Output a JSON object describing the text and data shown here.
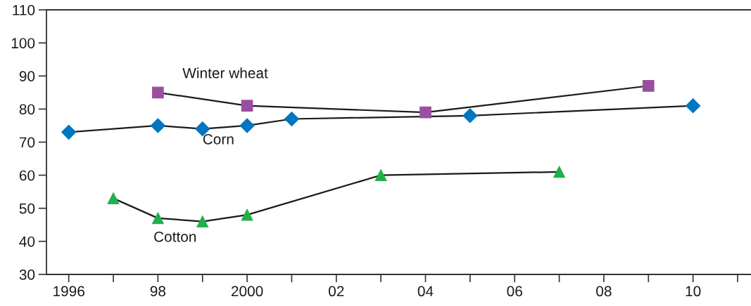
{
  "chart_data": {
    "type": "line",
    "series": [
      {
        "name": "Winter wheat",
        "color": "#994f9e",
        "marker": "square",
        "x": [
          1998,
          2000,
          2004,
          2009
        ],
        "values": [
          85,
          81,
          79,
          87
        ]
      },
      {
        "name": "Corn",
        "color": "#0076c0",
        "marker": "diamond",
        "x": [
          1996,
          1998,
          1999,
          2000,
          2001,
          2005,
          2010
        ],
        "values": [
          73,
          75,
          74,
          75,
          77,
          78,
          81
        ]
      },
      {
        "name": "Cotton",
        "color": "#21b04b",
        "marker": "triangle",
        "x": [
          1997,
          1998,
          1999,
          2000,
          2003,
          2007
        ],
        "values": [
          53,
          47,
          46,
          48,
          60,
          61
        ]
      }
    ],
    "xlim": [
      1995.5,
      2011.3
    ],
    "xticks": [
      {
        "value": 1996,
        "label": "1996"
      },
      {
        "value": 1997,
        "label": null
      },
      {
        "value": 1998,
        "label": "98"
      },
      {
        "value": 1999,
        "label": null
      },
      {
        "value": 2000,
        "label": "2000"
      },
      {
        "value": 2001,
        "label": null
      },
      {
        "value": 2002,
        "label": "02"
      },
      {
        "value": 2003,
        "label": null
      },
      {
        "value": 2004,
        "label": "04"
      },
      {
        "value": 2005,
        "label": null
      },
      {
        "value": 2006,
        "label": "06"
      },
      {
        "value": 2007,
        "label": null
      },
      {
        "value": 2008,
        "label": "08"
      },
      {
        "value": 2009,
        "label": null
      },
      {
        "value": 2010,
        "label": "10"
      },
      {
        "value": 2011,
        "label": null
      }
    ],
    "ylim": [
      30,
      110
    ],
    "yticks": [
      30,
      40,
      50,
      60,
      70,
      80,
      90,
      100,
      110
    ],
    "grid": false,
    "legend": false,
    "line_style": "solid"
  }
}
